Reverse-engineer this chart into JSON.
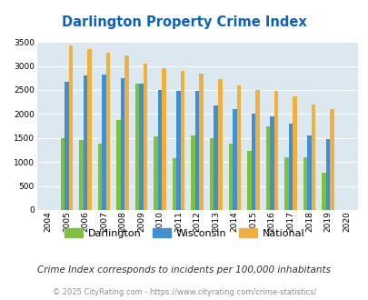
{
  "title": "Darlington Property Crime Index",
  "title_color": "#1060c0",
  "years": [
    2004,
    2005,
    2006,
    2007,
    2008,
    2009,
    2010,
    2011,
    2012,
    2013,
    2014,
    2015,
    2016,
    2017,
    2018,
    2019,
    2020
  ],
  "darlington": [
    0,
    1500,
    1450,
    1375,
    1875,
    2625,
    1525,
    1075,
    1550,
    1500,
    1375,
    1225,
    1750,
    1100,
    1100,
    775,
    0
  ],
  "wisconsin": [
    0,
    2675,
    2800,
    2825,
    2750,
    2625,
    2500,
    2475,
    2475,
    2175,
    2100,
    2000,
    1950,
    1800,
    1550,
    1475,
    0
  ],
  "national": [
    0,
    3425,
    3350,
    3275,
    3225,
    3050,
    2950,
    2900,
    2850,
    2725,
    2600,
    2500,
    2475,
    2375,
    2200,
    2100,
    0
  ],
  "darlington_color": "#80c040",
  "wisconsin_color": "#4090d0",
  "national_color": "#f0b040",
  "bg_color": "#dce8f0",
  "ylim": [
    0,
    3500
  ],
  "yticks": [
    0,
    500,
    1000,
    1500,
    2000,
    2500,
    3000,
    3500
  ],
  "subtitle": "Crime Index corresponds to incidents per 100,000 inhabitants",
  "footer": "© 2025 CityRating.com - https://www.cityrating.com/crime-statistics/",
  "subtitle_color": "#303030",
  "footer_color": "#909090"
}
